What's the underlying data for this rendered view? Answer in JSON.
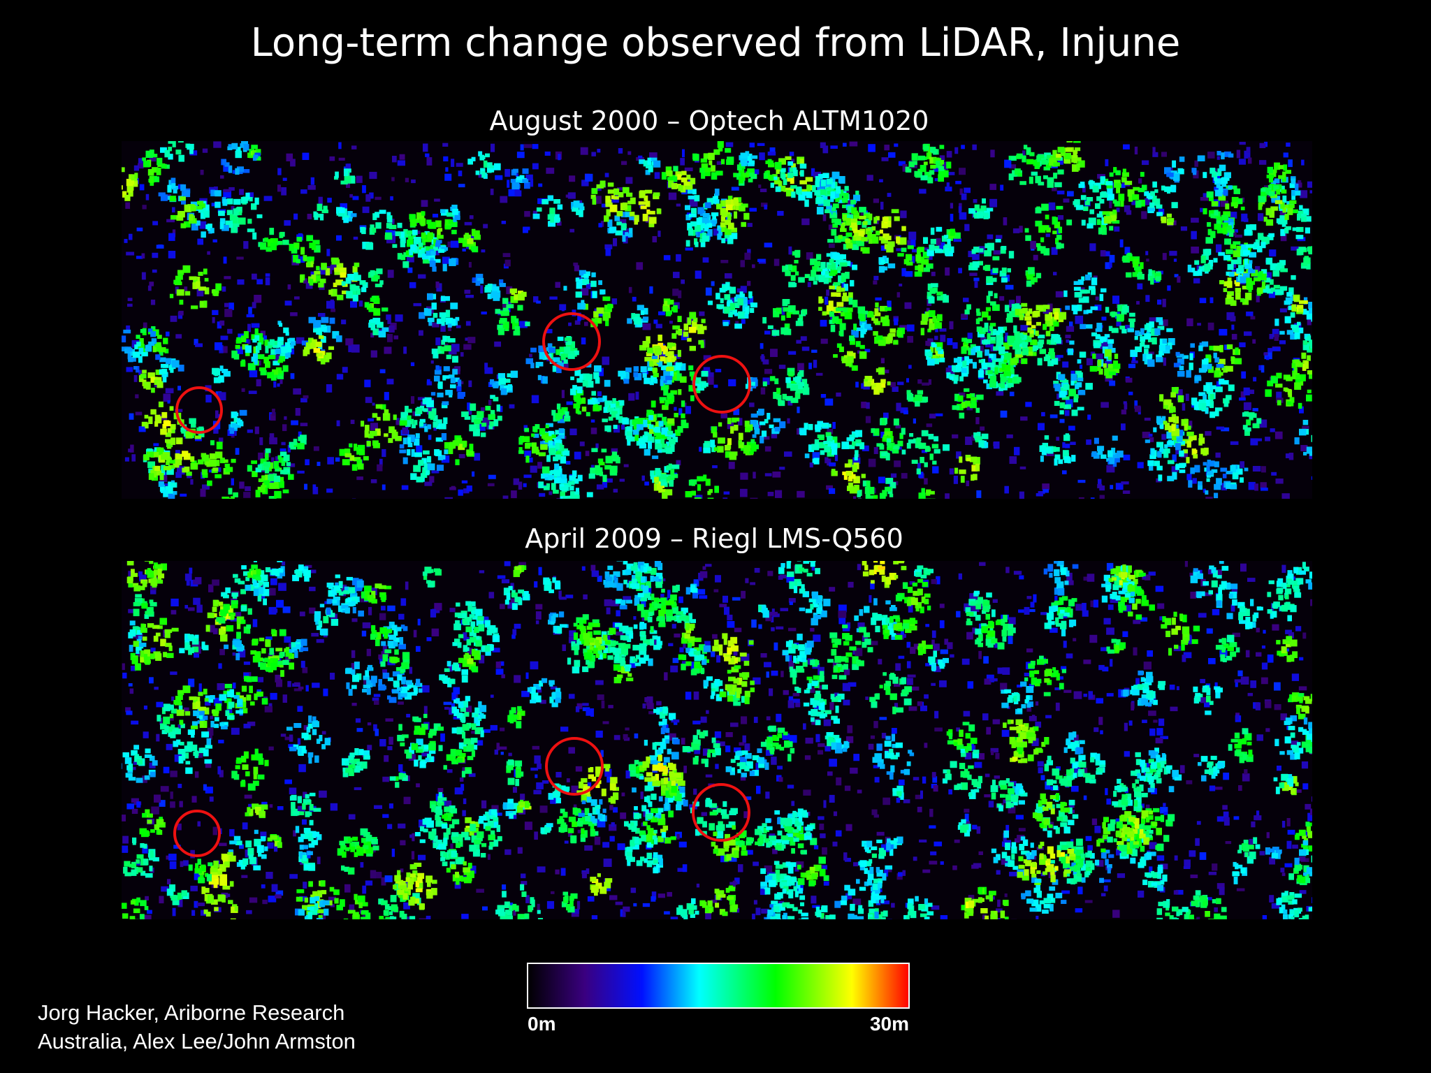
{
  "title": "Long-term change observed from LiDAR, Injune",
  "panels": [
    {
      "subtitle": "August 2000 – Optech ALTM1020"
    },
    {
      "subtitle": "April 2009 – Riegl LMS-Q560"
    }
  ],
  "colorbar": {
    "min_label": "0m",
    "max_label": "30m"
  },
  "credits": [
    "Jorg Hacker, Ariborne Research",
    "Australia, Alex Lee/John Armston"
  ]
}
